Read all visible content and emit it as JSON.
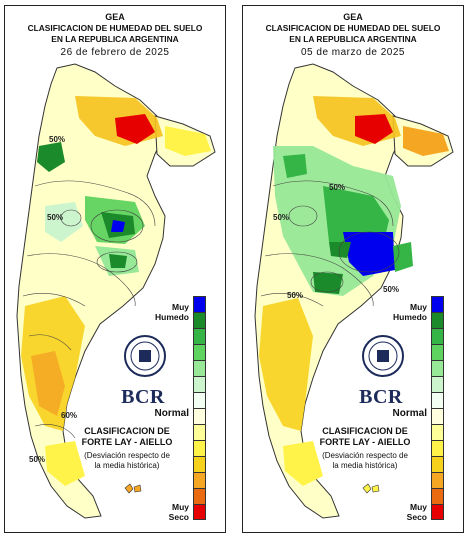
{
  "maps": [
    {
      "header": {
        "org": "GEA",
        "title_line1": "CLASIFICACION DE HUMEDAD DEL SUELO",
        "title_line2": "EN LA REPUBLICA ARGENTINA",
        "date": "26 de febrero de 2025"
      },
      "contour_labels": [
        "50%",
        "50%",
        "60%",
        "50%"
      ]
    },
    {
      "header": {
        "org": "GEA",
        "title_line1": "CLASIFICACION DE HUMEDAD DEL SUELO",
        "title_line2": "EN LA REPUBLICA ARGENTINA",
        "date": "05 de marzo de 2025"
      },
      "contour_labels": [
        "50%",
        "50%",
        "50%",
        "50%"
      ]
    }
  ],
  "legend": {
    "top_label": "Muy\nHumedo",
    "mid_label": "Normal",
    "bottom_label": "Muy\nSeco",
    "classification_title": "CLASIFICACION DE\nFORTE LAY - AIELLO",
    "classification_note": "(Desviación respecto de\nla media histórica)",
    "logo_text": "BCR",
    "colors": [
      "#0000ee",
      "#1a8a2a",
      "#34b545",
      "#5fd35f",
      "#97e897",
      "#cdf5cd",
      "#f2fff2",
      "#ffffe0",
      "#ffff99",
      "#fff34a",
      "#f7d21d",
      "#f5a623",
      "#ea6a12",
      "#e60000"
    ]
  }
}
